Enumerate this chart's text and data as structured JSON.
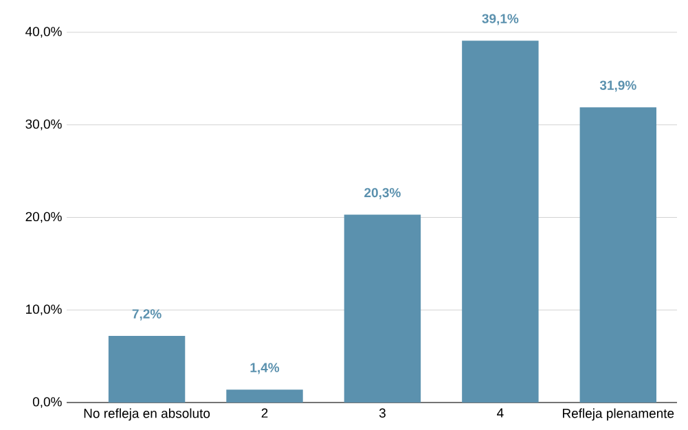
{
  "chart_data": {
    "type": "bar",
    "categories": [
      "No refleja en absoluto",
      "2",
      "3",
      "4",
      "Refleja plenamente"
    ],
    "values": [
      7.2,
      1.4,
      20.3,
      39.1,
      31.9
    ],
    "value_labels": [
      "7,2%",
      "1,4%",
      "20,3%",
      "39,1%",
      "31,9%"
    ],
    "color": "#5b91ae",
    "ylim": [
      0,
      40
    ],
    "yticks": [
      {
        "value": 0,
        "label": "0,0%"
      },
      {
        "value": 10,
        "label": "10,0%"
      },
      {
        "value": 20,
        "label": "20,0%"
      },
      {
        "value": 30,
        "label": "30,0%"
      },
      {
        "value": 40,
        "label": "40,0%"
      }
    ],
    "grid": "y"
  }
}
